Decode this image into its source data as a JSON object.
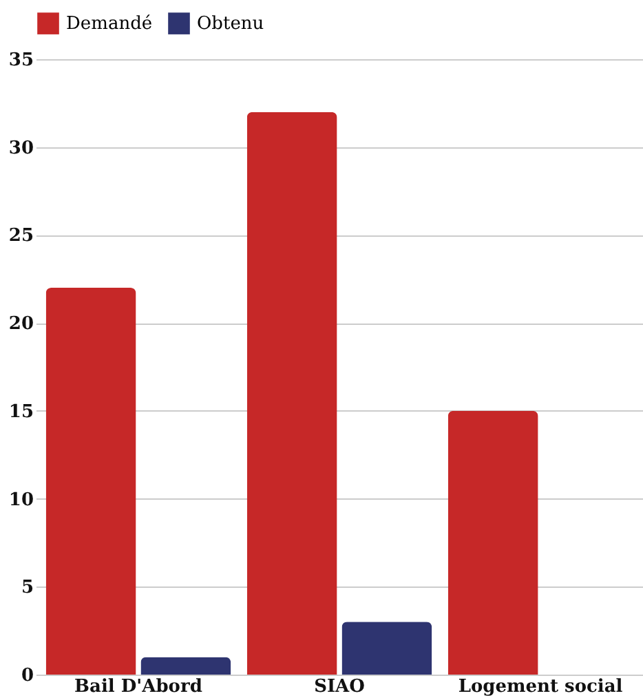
{
  "chart_data": {
    "type": "bar",
    "categories": [
      "Bail D'Abord",
      "SIAO",
      "Logement social"
    ],
    "series": [
      {
        "name": "Demandé",
        "color": "#c62828",
        "values": [
          22,
          32,
          15
        ]
      },
      {
        "name": "Obtenu",
        "color": "#2e3470",
        "values": [
          1,
          3,
          0
        ]
      }
    ],
    "ylim": [
      0,
      35
    ],
    "yticks": [
      0,
      5,
      10,
      15,
      20,
      25,
      30,
      35
    ],
    "grid": "y",
    "legend": "top"
  }
}
